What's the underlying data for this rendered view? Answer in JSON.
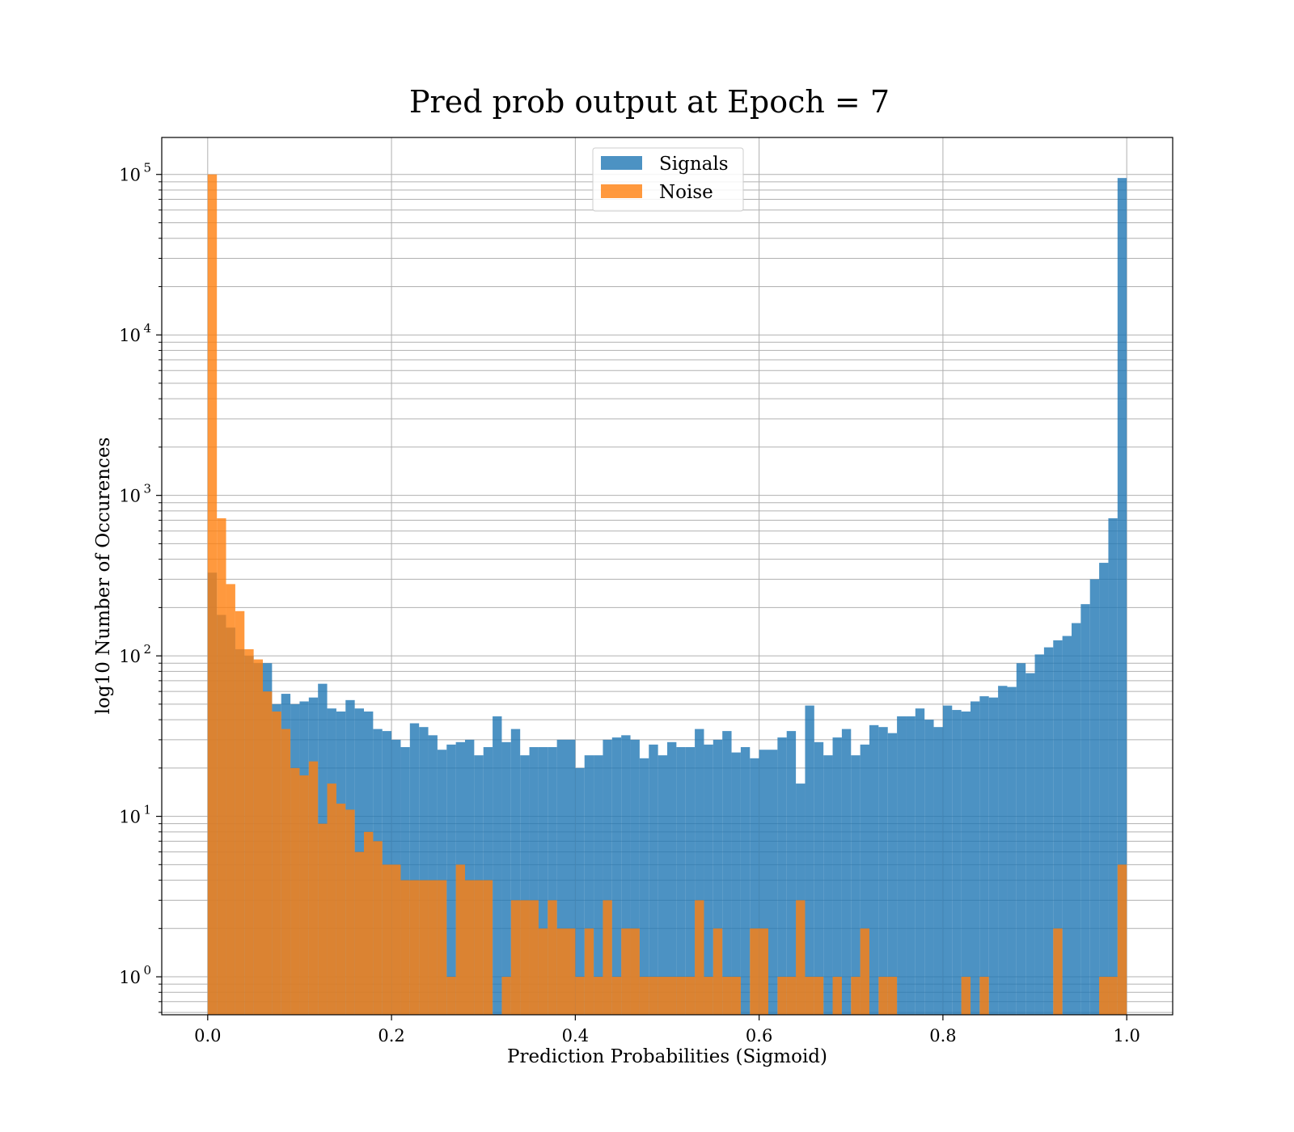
{
  "chart_data": {
    "type": "bar",
    "title": "Pred prob output at Epoch = 7",
    "xlabel": "Prediction Probabilities (Sigmoid)",
    "ylabel": "log10 Number of Occurences",
    "xlim": [
      -0.05,
      1.05
    ],
    "ylim": [
      0.58,
      170000
    ],
    "yscale": "log",
    "grid": true,
    "legend_position": "top-center",
    "x_ticks": [
      0.0,
      0.2,
      0.4,
      0.6,
      0.8,
      1.0
    ],
    "x_tick_labels": [
      "0.0",
      "0.2",
      "0.4",
      "0.6",
      "0.8",
      "1.0"
    ],
    "y_ticks": [
      {
        "value": 1,
        "base": "10",
        "exp": "0"
      },
      {
        "value": 10,
        "base": "10",
        "exp": "1"
      },
      {
        "value": 100,
        "base": "10",
        "exp": "2"
      },
      {
        "value": 1000,
        "base": "10",
        "exp": "3"
      },
      {
        "value": 10000,
        "base": "10",
        "exp": "4"
      },
      {
        "value": 100000,
        "base": "10",
        "exp": "5"
      }
    ],
    "bin_start": 0.0,
    "bin_width": 0.01,
    "series": [
      {
        "name": "Signals",
        "color": "#1f77b4",
        "values": [
          330,
          180,
          150,
          110,
          100,
          90,
          90,
          50,
          58,
          50,
          52,
          55,
          67,
          47,
          45,
          53,
          47,
          45,
          35,
          34,
          30,
          27,
          38,
          36,
          32,
          26,
          28,
          29,
          30,
          24,
          27,
          42,
          29,
          35,
          24,
          27,
          27,
          27,
          30,
          30,
          20,
          24,
          24,
          30,
          31,
          32,
          30,
          23,
          28,
          24,
          29,
          27,
          27,
          35,
          28,
          30,
          34,
          25,
          27,
          23,
          26,
          26,
          31,
          34,
          16,
          49,
          29,
          24,
          31,
          35,
          24,
          28,
          37,
          36,
          33,
          42,
          42,
          47,
          40,
          36,
          49,
          46,
          45,
          52,
          56,
          55,
          65,
          64,
          90,
          78,
          102,
          113,
          125,
          133,
          160,
          210,
          300,
          380,
          720,
          95000
        ]
      },
      {
        "name": "Noise",
        "color": "#ff7f0e",
        "values": [
          100000,
          720,
          280,
          190,
          110,
          95,
          60,
          45,
          35,
          20,
          18,
          22,
          9,
          16,
          12,
          11,
          6,
          8,
          7,
          5,
          5,
          4,
          4,
          4,
          4,
          4,
          1,
          5,
          4,
          4,
          4,
          0,
          1,
          3,
          3,
          3,
          2,
          3,
          2,
          2,
          1,
          2,
          1,
          3,
          1,
          2,
          2,
          1,
          1,
          1,
          1,
          1,
          1,
          3,
          1,
          2,
          1,
          1,
          0,
          2,
          2,
          0,
          1,
          1,
          3,
          1,
          1,
          0,
          1,
          0,
          1,
          2,
          0,
          1,
          1,
          0,
          0,
          0,
          0,
          0,
          0,
          0,
          1,
          0,
          1,
          0,
          0,
          0,
          0,
          0,
          0,
          0,
          2,
          0,
          0,
          0,
          0,
          1,
          1,
          5
        ]
      }
    ]
  }
}
